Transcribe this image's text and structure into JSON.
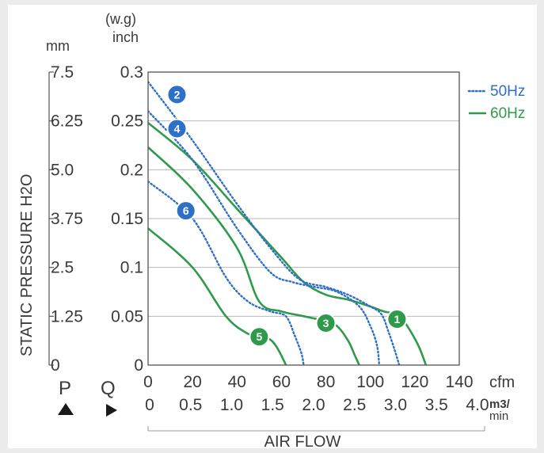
{
  "chart_data": {
    "type": "line",
    "xlabel": "AIR FLOW",
    "ylabel": "STATIC PRESSURE H2O",
    "y_units": {
      "mm": "mm",
      "inch_line1": "(w.g)",
      "inch_line2": "inch"
    },
    "x_units": {
      "cfm": "cfm",
      "m3": "m3/",
      "min": "min"
    },
    "p_label": "P",
    "q_label": "Q",
    "xlim": [
      0,
      140
    ],
    "ylim": [
      0,
      0.3
    ],
    "grid": true,
    "legend_position": "right-top",
    "x_ticks_cfm": [
      "0",
      "20",
      "40",
      "60",
      "80",
      "100",
      "120",
      "140"
    ],
    "x_ticks_m3": [
      "0",
      "0.5",
      "1.0",
      "1.5",
      "2.0",
      "2.5",
      "3.0",
      "3.5",
      "4.0"
    ],
    "y_ticks_inch": [
      "0",
      "0.05",
      "0.1",
      "0.15",
      "0.2",
      "0.25",
      "0.3"
    ],
    "y_ticks_mm": [
      "0",
      "1.25",
      "2.5",
      "3.75",
      "5.0",
      "6.25",
      "7.5"
    ],
    "legend": [
      {
        "label": "50Hz",
        "style": "dotted",
        "color": "#2e6fc7"
      },
      {
        "label": "60Hz",
        "style": "solid",
        "color": "#2f9a4b"
      }
    ],
    "series": [
      {
        "marker": "1",
        "freq": "60Hz",
        "color": "#2f9a4b",
        "style": "solid",
        "points": [
          [
            0,
            0.248
          ],
          [
            20,
            0.21
          ],
          [
            40,
            0.16
          ],
          [
            60,
            0.11
          ],
          [
            70,
            0.085
          ],
          [
            80,
            0.072
          ],
          [
            90,
            0.067
          ],
          [
            100,
            0.06
          ],
          [
            106,
            0.055
          ],
          [
            110,
            0.053
          ],
          [
            114,
            0.048
          ],
          [
            118,
            0.035
          ],
          [
            122,
            0.018
          ],
          [
            125,
            0
          ]
        ]
      },
      {
        "marker": "2",
        "freq": "50Hz",
        "color": "#2e6fc7",
        "style": "dotted",
        "points": [
          [
            0,
            0.29
          ],
          [
            20,
            0.23
          ],
          [
            40,
            0.165
          ],
          [
            55,
            0.12
          ],
          [
            68,
            0.088
          ],
          [
            80,
            0.08
          ],
          [
            90,
            0.072
          ],
          [
            100,
            0.06
          ],
          [
            105,
            0.052
          ],
          [
            108,
            0.035
          ],
          [
            111,
            0.015
          ],
          [
            113,
            0
          ]
        ]
      },
      {
        "marker": "3",
        "freq": "60Hz",
        "color": "#2f9a4b",
        "style": "solid",
        "points": [
          [
            0,
            0.223
          ],
          [
            20,
            0.18
          ],
          [
            40,
            0.12
          ],
          [
            50,
            0.065
          ],
          [
            60,
            0.055
          ],
          [
            70,
            0.05
          ],
          [
            80,
            0.045
          ],
          [
            85,
            0.04
          ],
          [
            90,
            0.025
          ],
          [
            93,
            0.01
          ],
          [
            95,
            0
          ]
        ]
      },
      {
        "marker": "4",
        "freq": "50Hz",
        "color": "#2e6fc7",
        "style": "dotted",
        "points": [
          [
            0,
            0.26
          ],
          [
            20,
            0.21
          ],
          [
            40,
            0.14
          ],
          [
            55,
            0.095
          ],
          [
            65,
            0.085
          ],
          [
            75,
            0.08
          ],
          [
            85,
            0.075
          ],
          [
            95,
            0.06
          ],
          [
            100,
            0.04
          ],
          [
            103,
            0.02
          ],
          [
            104,
            0
          ]
        ]
      },
      {
        "marker": "5",
        "freq": "60Hz",
        "color": "#2f9a4b",
        "style": "solid",
        "points": [
          [
            0,
            0.14
          ],
          [
            20,
            0.1
          ],
          [
            35,
            0.05
          ],
          [
            45,
            0.032
          ],
          [
            50,
            0.03
          ],
          [
            55,
            0.026
          ],
          [
            58,
            0.018
          ],
          [
            61,
            0.005
          ],
          [
            62,
            0
          ]
        ]
      },
      {
        "marker": "6",
        "freq": "50Hz",
        "color": "#2e6fc7",
        "style": "dotted",
        "points": [
          [
            0,
            0.188
          ],
          [
            20,
            0.15
          ],
          [
            35,
            0.09
          ],
          [
            45,
            0.065
          ],
          [
            55,
            0.055
          ],
          [
            62,
            0.05
          ],
          [
            66,
            0.03
          ],
          [
            69,
            0.012
          ],
          [
            70,
            0
          ]
        ]
      }
    ]
  }
}
